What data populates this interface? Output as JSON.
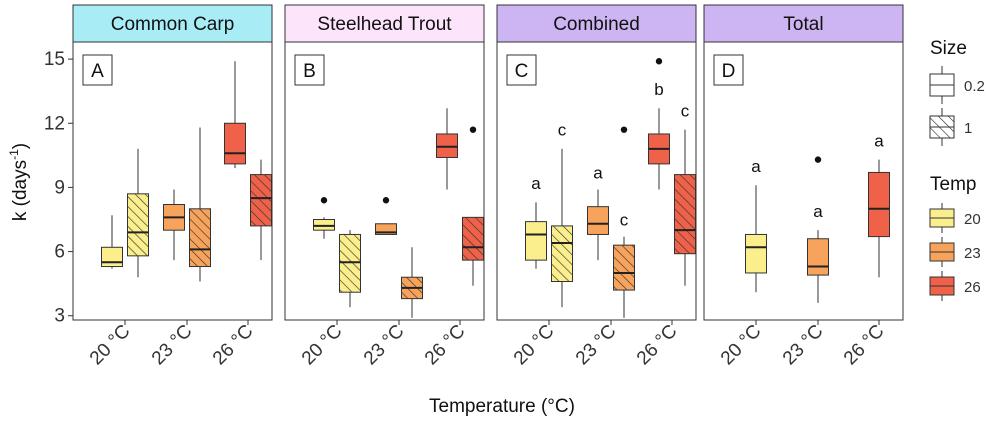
{
  "chart_data": {
    "type": "boxplot",
    "ylabel": "k (days",
    "ylabel_sup": "-1",
    "ylabel_close": ")",
    "xlabel": "Temperature (°C)",
    "ylim": [
      2.8,
      15.8
    ],
    "yticks": [
      3,
      6,
      9,
      12,
      15
    ],
    "ytick_labels": [
      "3",
      "6",
      "9",
      "12",
      "15"
    ],
    "categories": [
      "20 °C",
      "23 °C",
      "26 °C"
    ],
    "colors": {
      "20": "#FBEE8C",
      "23": "#F7A35C",
      "26": "#F0614A"
    },
    "panels": [
      {
        "title": "Common Carp",
        "letter": "A",
        "strip_color": "#A8ECF6",
        "boxes": [
          {
            "temp": "20",
            "size": "0.2",
            "min": 5.2,
            "q1": 5.3,
            "median": 5.5,
            "q3": 6.2,
            "max": 7.7,
            "outliers": []
          },
          {
            "temp": "20",
            "size": "1",
            "min": 4.8,
            "q1": 5.8,
            "median": 6.9,
            "q3": 8.7,
            "max": 10.8,
            "outliers": []
          },
          {
            "temp": "23",
            "size": "0.2",
            "min": 5.6,
            "q1": 7.0,
            "median": 7.6,
            "q3": 8.2,
            "max": 8.9,
            "outliers": []
          },
          {
            "temp": "23",
            "size": "1",
            "min": 4.6,
            "q1": 5.3,
            "median": 6.1,
            "q3": 8.0,
            "max": 11.8,
            "outliers": []
          },
          {
            "temp": "26",
            "size": "0.2",
            "min": 9.9,
            "q1": 10.1,
            "median": 10.6,
            "q3": 12.0,
            "max": 14.9,
            "outliers": []
          },
          {
            "temp": "26",
            "size": "1",
            "min": 5.6,
            "q1": 7.2,
            "median": 8.5,
            "q3": 9.6,
            "max": 10.3,
            "outliers": []
          }
        ],
        "labels": []
      },
      {
        "title": "Steelhead Trout",
        "letter": "B",
        "strip_color": "#FCE4FA",
        "boxes": [
          {
            "temp": "20",
            "size": "0.2",
            "min": 6.6,
            "q1": 7.0,
            "median": 7.2,
            "q3": 7.5,
            "max": 7.6,
            "outliers": [
              8.4
            ]
          },
          {
            "temp": "20",
            "size": "1",
            "min": 3.4,
            "q1": 4.1,
            "median": 5.5,
            "q3": 6.8,
            "max": 7.0,
            "outliers": []
          },
          {
            "temp": "23",
            "size": "0.2",
            "min": 6.8,
            "q1": 6.8,
            "median": 6.9,
            "q3": 7.3,
            "max": 7.3,
            "outliers": [
              8.4
            ]
          },
          {
            "temp": "23",
            "size": "1",
            "min": 2.9,
            "q1": 3.8,
            "median": 4.3,
            "q3": 4.8,
            "max": 6.2,
            "outliers": []
          },
          {
            "temp": "26",
            "size": "0.2",
            "min": 8.9,
            "q1": 10.4,
            "median": 10.9,
            "q3": 11.5,
            "max": 12.7,
            "outliers": []
          },
          {
            "temp": "26",
            "size": "1",
            "min": 4.4,
            "q1": 5.6,
            "median": 6.2,
            "q3": 7.6,
            "max": 7.6,
            "outliers": [
              11.7
            ]
          }
        ],
        "labels": []
      },
      {
        "title": "Combined",
        "letter": "C",
        "strip_color": "#CDB5F4",
        "boxes": [
          {
            "temp": "20",
            "size": "0.2",
            "min": 5.2,
            "q1": 5.6,
            "median": 6.8,
            "q3": 7.4,
            "max": 8.3,
            "outliers": []
          },
          {
            "temp": "20",
            "size": "1",
            "min": 3.4,
            "q1": 4.6,
            "median": 6.4,
            "q3": 7.2,
            "max": 10.8,
            "outliers": []
          },
          {
            "temp": "23",
            "size": "0.2",
            "min": 5.6,
            "q1": 6.8,
            "median": 7.3,
            "q3": 8.1,
            "max": 8.9,
            "outliers": []
          },
          {
            "temp": "23",
            "size": "1",
            "min": 2.9,
            "q1": 4.2,
            "median": 5.0,
            "q3": 6.3,
            "max": 6.7,
            "outliers": [
              11.7
            ]
          },
          {
            "temp": "26",
            "size": "0.2",
            "min": 8.9,
            "q1": 10.1,
            "median": 10.8,
            "q3": 11.5,
            "max": 12.7,
            "outliers": [
              14.9
            ]
          },
          {
            "temp": "26",
            "size": "1",
            "min": 4.4,
            "q1": 5.9,
            "median": 7.0,
            "q3": 9.6,
            "max": 11.7,
            "outliers": []
          }
        ],
        "labels": [
          {
            "box": 0,
            "text": "a",
            "y": 9.2
          },
          {
            "box": 1,
            "text": "c",
            "y": 11.7
          },
          {
            "box": 2,
            "text": "a",
            "y": 9.7
          },
          {
            "box": 3,
            "text": "c",
            "y": 7.5
          },
          {
            "box": 4,
            "text": "b",
            "y": 13.6
          },
          {
            "box": 5,
            "text": "c",
            "y": 12.6
          }
        ]
      },
      {
        "title": "Total",
        "letter": "D",
        "strip_color": "#CDB5F4",
        "boxes": [
          {
            "temp": "20",
            "size": "0.2",
            "min": 4.1,
            "q1": 5.0,
            "median": 6.2,
            "q3": 6.8,
            "max": 9.1,
            "outliers": []
          },
          {
            "temp": "23",
            "size": "0.2",
            "min": 3.6,
            "q1": 4.9,
            "median": 5.3,
            "q3": 6.6,
            "max": 7.0,
            "outliers": [
              10.3
            ]
          },
          {
            "temp": "26",
            "size": "0.2",
            "min": 4.8,
            "q1": 6.7,
            "median": 8.0,
            "q3": 9.7,
            "max": 10.3,
            "outliers": []
          }
        ],
        "labels": [
          {
            "box": 0,
            "text": "a",
            "y": 10.0
          },
          {
            "box": 1,
            "text": "a",
            "y": 7.9
          },
          {
            "box": 2,
            "text": "a",
            "y": 11.2
          }
        ]
      }
    ],
    "legend": {
      "size_title": "Size",
      "size_items": [
        {
          "label": "0.2",
          "hatch": false
        },
        {
          "label": "1",
          "hatch": true
        }
      ],
      "temp_title": "Temp",
      "temp_items": [
        {
          "label": "20",
          "color": "#FBEE8C"
        },
        {
          "label": "23",
          "color": "#F7A35C"
        },
        {
          "label": "26",
          "color": "#F0614A"
        }
      ]
    }
  }
}
